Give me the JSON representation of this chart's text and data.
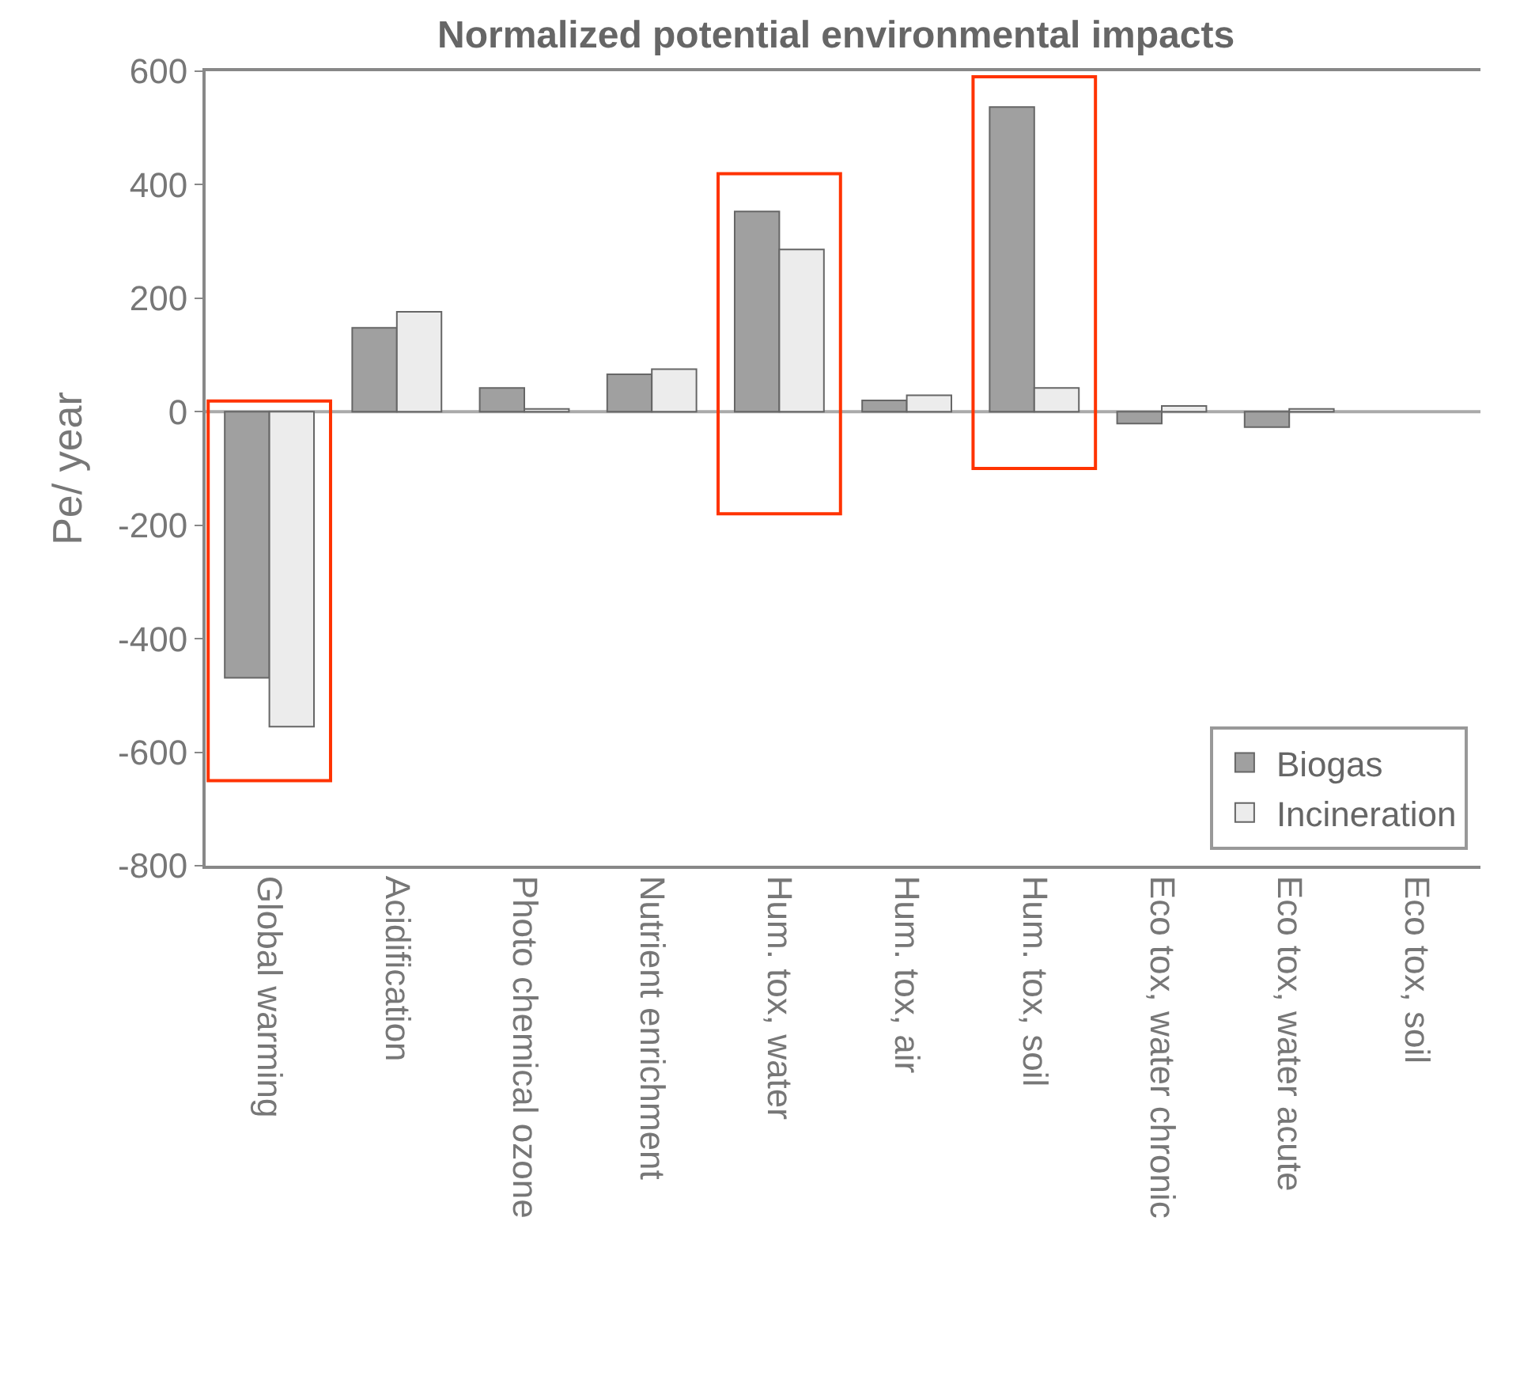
{
  "chart_data": {
    "type": "bar",
    "title": "Normalized potential environmental impacts",
    "ylabel": "Pe/ year",
    "categories": [
      "Global warming",
      "Acidification",
      "Photo chemical ozone",
      "Nutrient enrichment",
      "Hum. tox, water",
      "Hum. tox, air",
      "Hum. tox, soil",
      "Eco tox, water chronic",
      "Eco tox, water acute",
      "Eco tox, soil"
    ],
    "series": [
      {
        "name": "Biogas",
        "color": "#a0a0a0",
        "values": [
          -469,
          148,
          42,
          66,
          353,
          20,
          537,
          -21,
          -27,
          null
        ]
      },
      {
        "name": "Incineration",
        "color": "#ececec",
        "values": [
          -555,
          176,
          5,
          75,
          286,
          29,
          42,
          10,
          5,
          null
        ]
      }
    ],
    "ylim": [
      -800,
      600
    ],
    "yticks": [
      -800,
      -600,
      -400,
      -200,
      0,
      200,
      400,
      600
    ],
    "ref_lines": [
      {
        "axis": "y",
        "value": 0,
        "color": "#aaaaaa"
      }
    ],
    "legend": "bottom right",
    "grid": false
  }
}
